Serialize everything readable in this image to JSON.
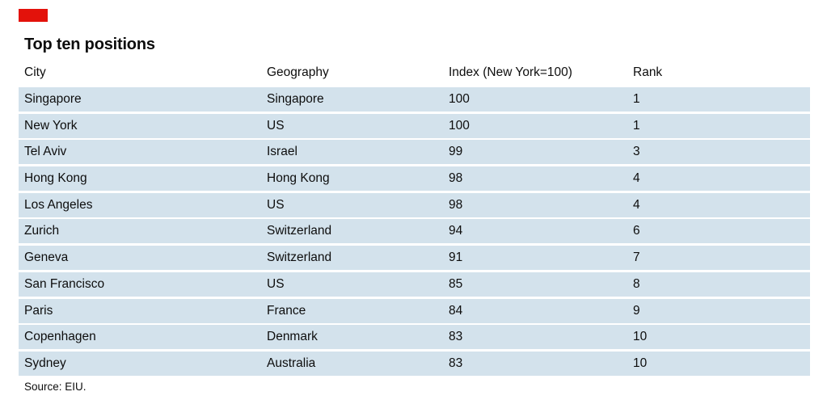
{
  "title": "Top ten positions",
  "source": "Source: EIU.",
  "brand": {
    "accent_mark": "red-rectangle",
    "accent_color": "#e3120b"
  },
  "colors": {
    "background": "#ffffff",
    "row_bg": "#d3e2ec",
    "text": "#0d0d0d"
  },
  "chart_data": {
    "type": "table",
    "title": "Top ten positions",
    "columns": [
      "City",
      "Geography",
      "Index (New York=100)",
      "Rank"
    ],
    "rows": [
      [
        "Singapore",
        "Singapore",
        "100",
        "1"
      ],
      [
        "New York",
        "US",
        "100",
        "1"
      ],
      [
        "Tel Aviv",
        "Israel",
        "99",
        "3"
      ],
      [
        "Hong Kong",
        "Hong Kong",
        "98",
        "4"
      ],
      [
        "Los Angeles",
        "US",
        "98",
        "4"
      ],
      [
        "Zurich",
        "Switzerland",
        "94",
        "6"
      ],
      [
        "Geneva",
        "Switzerland",
        "91",
        "7"
      ],
      [
        "San Francisco",
        "US",
        "85",
        "8"
      ],
      [
        "Paris",
        "France",
        "84",
        "9"
      ],
      [
        "Copenhagen",
        "Denmark",
        "83",
        "10"
      ],
      [
        "Sydney",
        "Australia",
        "83",
        "10"
      ]
    ],
    "source": "Source: EIU.",
    "layout": {
      "grid": "off",
      "row_style": "solid-light-blue-bands"
    }
  }
}
